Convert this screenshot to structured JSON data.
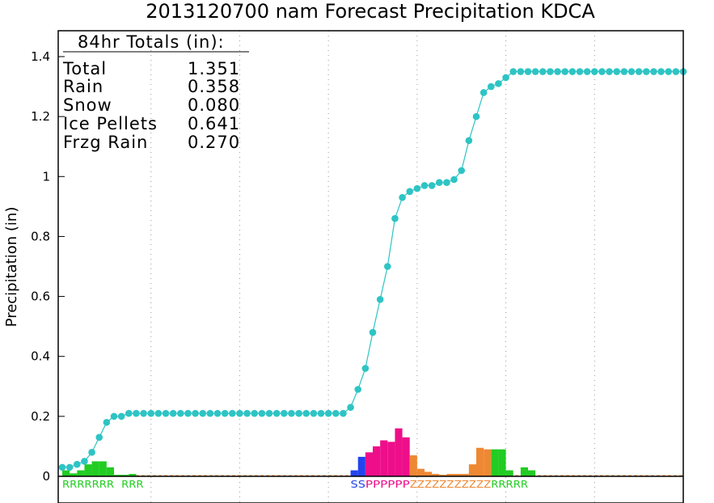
{
  "colors": {
    "total_line": "#2ec4c4",
    "rain": "#22cc22",
    "snow": "#2244ee",
    "ice_pellets": "#ee0e8a",
    "freezing_rain": "#ee8833",
    "grid": "#999999"
  },
  "chart_data": {
    "type": "line",
    "title": "2013120700 nam Forecast Precipitation KDCA",
    "ylabel": "Precipitation (in)",
    "xlabel": "",
    "ylim": [
      -0.03,
      1.48
    ],
    "y_ticks": [
      "0",
      "0.2",
      "0.4",
      "0.6",
      "0.8",
      "1",
      "1.2",
      "1.4"
    ],
    "y_tick_values": [
      0,
      0.2,
      0.4,
      0.6,
      0.8,
      1.0,
      1.2,
      1.4
    ],
    "x_range_hours": [
      0,
      84
    ],
    "grid": "vertical dotted every 12 hours",
    "legend": {
      "heading": "84hr Totals (in):",
      "entries": [
        {
          "label": "Total",
          "value": "1.351"
        },
        {
          "label": "Rain",
          "value": "0.358"
        },
        {
          "label": "Snow",
          "value": "0.080"
        },
        {
          "label": "Ice Pellets",
          "value": "0.641"
        },
        {
          "label": "Frzg Rain",
          "value": "0.270"
        }
      ]
    },
    "series": [
      {
        "name": "Total",
        "kind": "cumulative_line",
        "x_hours": [
          0,
          1,
          2,
          3,
          4,
          5,
          6,
          7,
          8,
          9,
          10,
          11,
          12,
          13,
          14,
          15,
          16,
          17,
          18,
          19,
          20,
          21,
          22,
          23,
          24,
          25,
          26,
          27,
          28,
          29,
          30,
          31,
          32,
          33,
          34,
          35,
          36,
          37,
          38,
          39,
          40,
          41,
          42,
          43,
          44,
          45,
          46,
          47,
          48,
          49,
          50,
          51,
          52,
          53,
          54,
          55,
          56,
          57,
          58,
          59,
          60,
          61,
          62,
          63,
          64,
          65,
          66,
          67,
          68,
          69,
          70,
          71,
          72,
          73,
          74,
          75,
          76,
          77,
          78,
          79,
          80,
          81,
          82,
          83,
          84
        ],
        "values": [
          0.03,
          0.03,
          0.04,
          0.05,
          0.08,
          0.13,
          0.18,
          0.2,
          0.2,
          0.21,
          0.21,
          0.21,
          0.21,
          0.21,
          0.21,
          0.21,
          0.21,
          0.21,
          0.21,
          0.21,
          0.21,
          0.21,
          0.21,
          0.21,
          0.21,
          0.21,
          0.21,
          0.21,
          0.21,
          0.21,
          0.21,
          0.21,
          0.21,
          0.21,
          0.21,
          0.21,
          0.21,
          0.21,
          0.21,
          0.23,
          0.29,
          0.36,
          0.48,
          0.59,
          0.7,
          0.86,
          0.93,
          0.95,
          0.96,
          0.97,
          0.97,
          0.98,
          0.98,
          0.99,
          1.02,
          1.12,
          1.2,
          1.28,
          1.3,
          1.31,
          1.33,
          1.35,
          1.35,
          1.35,
          1.35,
          1.35,
          1.35,
          1.35,
          1.35,
          1.35,
          1.35,
          1.35,
          1.35,
          1.35,
          1.35,
          1.35,
          1.35,
          1.35,
          1.35,
          1.35,
          1.35,
          1.35,
          1.35,
          1.35,
          1.35
        ]
      },
      {
        "name": "Rain",
        "kind": "bars",
        "x_hours": [
          0,
          1,
          2,
          3,
          4,
          5,
          6,
          7,
          8,
          9,
          58,
          59,
          60,
          61,
          62,
          63
        ],
        "values": [
          0.02,
          0.01,
          0.02,
          0.04,
          0.05,
          0.05,
          0.03,
          0.005,
          0.005,
          0.008,
          0.09,
          0.09,
          0.02,
          0.0,
          0.03,
          0.02
        ]
      },
      {
        "name": "Snow",
        "kind": "bars",
        "x_hours": [
          39,
          40
        ],
        "values": [
          0.02,
          0.065
        ]
      },
      {
        "name": "Ice Pellets",
        "kind": "bars",
        "x_hours": [
          41,
          42,
          43,
          44,
          45,
          46
        ],
        "values": [
          0.08,
          0.1,
          0.12,
          0.115,
          0.16,
          0.13
        ]
      },
      {
        "name": "Frzg Rain",
        "kind": "bars",
        "x_hours": [
          47,
          48,
          49,
          50,
          51,
          52,
          53,
          54,
          55,
          56,
          57
        ],
        "values": [
          0.07,
          0.025,
          0.015,
          0.008,
          0.005,
          0.008,
          0.008,
          0.008,
          0.04,
          0.095,
          0.09
        ]
      }
    ],
    "ptype_labels": [
      {
        "text": "RRRRRRR",
        "color": "#22cc22",
        "start_hour": 0
      },
      {
        "text": "RRR",
        "color": "#22cc22",
        "start_hour": 8
      },
      {
        "text": "SS",
        "color": "#2244ee",
        "start_hour": 39
      },
      {
        "text": "PPPPPP",
        "color": "#ee0e8a",
        "start_hour": 41
      },
      {
        "text": "ZZZZZZZZZZZ",
        "color": "#ee8833",
        "start_hour": 47
      },
      {
        "text": "RRRRR",
        "color": "#22cc22",
        "start_hour": 58
      }
    ]
  }
}
